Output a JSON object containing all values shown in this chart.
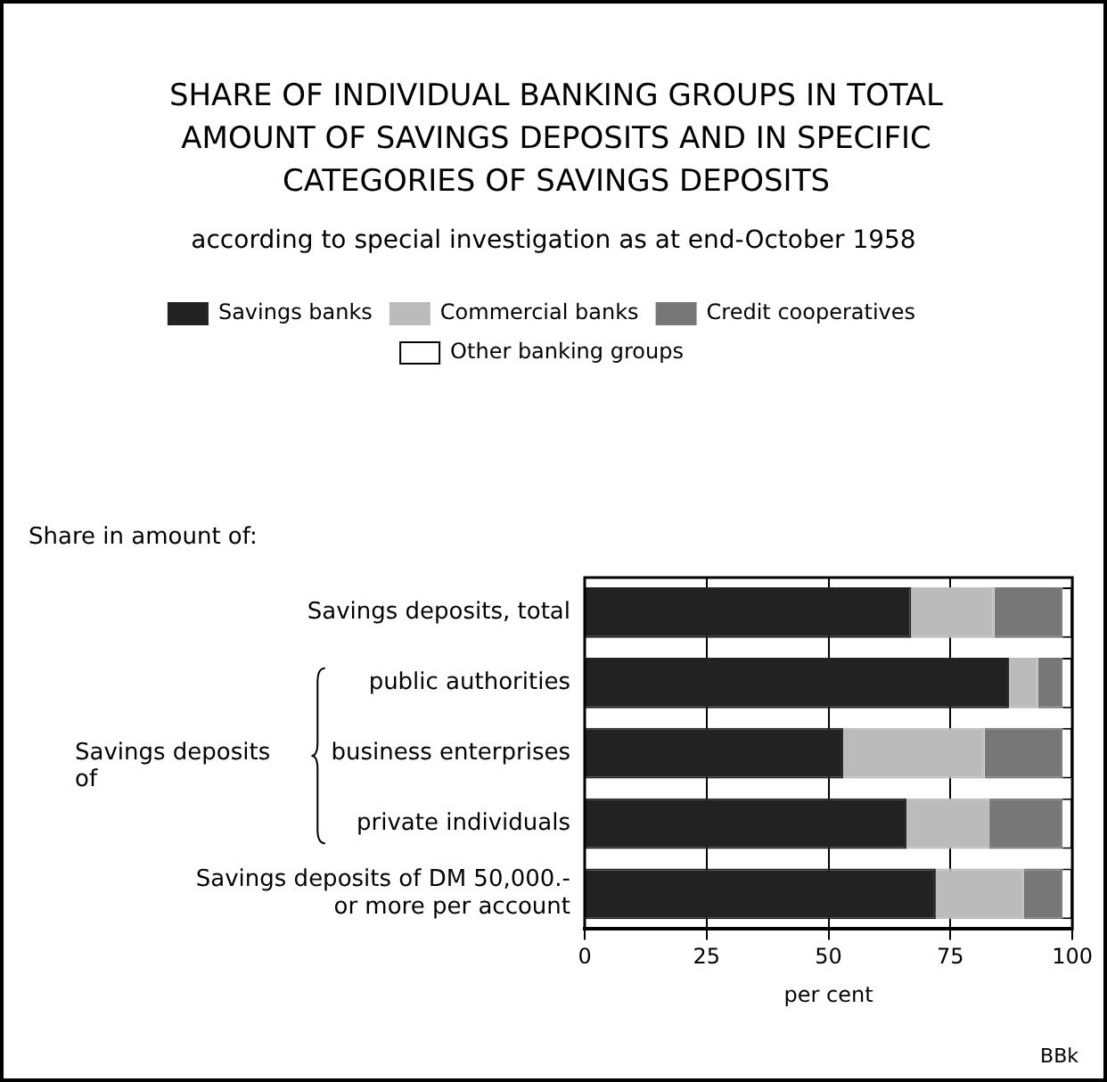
{
  "chart_data": {
    "type": "bar",
    "orientation": "horizontal",
    "stacked": true,
    "title": "SHARE OF INDIVIDUAL BANKING GROUPS IN TOTAL AMOUNT OF SAVINGS DEPOSITS AND IN SPECIFIC CATEGORIES OF SAVINGS DEPOSITS",
    "subtitle": "according to special investigation as at end-October 1958",
    "categories": [
      "Savings deposits, total",
      "public authorities",
      "business enterprises",
      "private individuals",
      "Savings deposits of DM 50,000.- or more per account"
    ],
    "series": [
      {
        "name": "Savings banks",
        "color": "#222222",
        "values": [
          67,
          87,
          53,
          66,
          72
        ]
      },
      {
        "name": "Commercial banks",
        "color": "#bbbbbb",
        "values": [
          17,
          6,
          29,
          17,
          18
        ]
      },
      {
        "name": "Credit cooperatives",
        "color": "#777777",
        "values": [
          14,
          5,
          16,
          15,
          8
        ]
      },
      {
        "name": "Other banking groups",
        "color": "#ffffff",
        "values": [
          2,
          2,
          2,
          2,
          2
        ]
      }
    ],
    "xlabel": "per cent",
    "xlim": [
      0,
      100
    ],
    "xticks": [
      0,
      25,
      50,
      75,
      100
    ],
    "grid": "x",
    "legend": "top",
    "annotations": [
      "Share in amount of:",
      "Savings deposits of",
      "BBk"
    ]
  }
}
